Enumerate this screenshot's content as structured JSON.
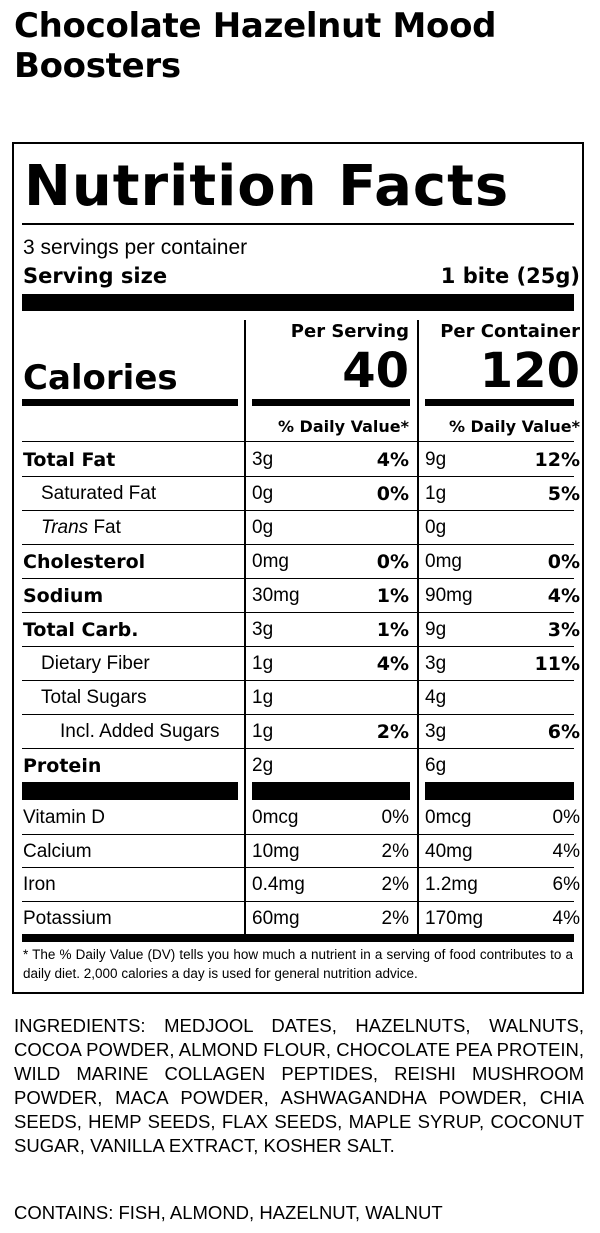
{
  "product": {
    "title": "Chocolate Hazelnut Mood Boosters"
  },
  "label": {
    "heading": "Nutrition Facts",
    "servings_per_container": "3 servings per container",
    "serving_size_label": "Serving size",
    "serving_size_value": "1 bite (25g)",
    "per_serving_header": "Per Serving",
    "per_container_header": "Per Container",
    "calories_label": "Calories",
    "calories_per_serving": "40",
    "calories_per_container": "120",
    "dv_header": "% Daily Value*",
    "nutrients": [
      {
        "name": "Total Fat",
        "bold": true,
        "indent": 0,
        "serving_amount": "3g",
        "serving_dv": "4%",
        "container_amount": "9g",
        "container_dv": "12%"
      },
      {
        "name": "Saturated Fat",
        "bold": false,
        "indent": 1,
        "serving_amount": "0g",
        "serving_dv": "0%",
        "container_amount": "1g",
        "container_dv": "5%"
      },
      {
        "name_italic": "Trans",
        "name": "Fat",
        "bold": false,
        "indent": 1,
        "serving_amount": "0g",
        "serving_dv": "",
        "container_amount": "0g",
        "container_dv": ""
      },
      {
        "name": "Cholesterol",
        "bold": true,
        "indent": 0,
        "serving_amount": "0mg",
        "serving_dv": "0%",
        "container_amount": "0mg",
        "container_dv": "0%"
      },
      {
        "name": "Sodium",
        "bold": true,
        "indent": 0,
        "serving_amount": "30mg",
        "serving_dv": "1%",
        "container_amount": "90mg",
        "container_dv": "4%"
      },
      {
        "name": "Total Carb.",
        "bold": true,
        "indent": 0,
        "serving_amount": "3g",
        "serving_dv": "1%",
        "container_amount": "9g",
        "container_dv": "3%"
      },
      {
        "name": "Dietary Fiber",
        "bold": false,
        "indent": 1,
        "serving_amount": "1g",
        "serving_dv": "4%",
        "container_amount": "3g",
        "container_dv": "11%"
      },
      {
        "name": "Total Sugars",
        "bold": false,
        "indent": 1,
        "serving_amount": "1g",
        "serving_dv": "",
        "container_amount": "4g",
        "container_dv": ""
      },
      {
        "name": "Incl. Added Sugars",
        "bold": false,
        "indent": 2,
        "serving_amount": "1g",
        "serving_dv": "2%",
        "container_amount": "3g",
        "container_dv": "6%"
      },
      {
        "name": "Protein",
        "bold": true,
        "indent": 0,
        "serving_amount": "2g",
        "serving_dv": "",
        "container_amount": "6g",
        "container_dv": ""
      }
    ],
    "vitamins": [
      {
        "name": "Vitamin D",
        "serving_amount": "0mcg",
        "serving_dv": "0%",
        "container_amount": "0mcg",
        "container_dv": "0%"
      },
      {
        "name": "Calcium",
        "serving_amount": "10mg",
        "serving_dv": "2%",
        "container_amount": "40mg",
        "container_dv": "4%"
      },
      {
        "name": "Iron",
        "serving_amount": "0.4mg",
        "serving_dv": "2%",
        "container_amount": "1.2mg",
        "container_dv": "6%"
      },
      {
        "name": "Potassium",
        "serving_amount": "60mg",
        "serving_dv": "2%",
        "container_amount": "170mg",
        "container_dv": "4%"
      }
    ],
    "footnote": "* The % Daily Value (DV) tells you how much a nutrient in a serving of food contributes to a daily diet. 2,000 calories a day is used for general nutrition advice."
  },
  "ingredients": "INGREDIENTS: MEDJOOL DATES, HAZELNUTS, WALNUTS, COCOA POWDER, ALMOND FLOUR, CHOCOLATE PEA PROTEIN, WILD MARINE COLLAGEN PEPTIDES, REISHI MUSHROOM POWDER, MACA POWDER, ASHWAGANDHA POWDER, CHIA SEEDS, HEMP SEEDS, FLAX SEEDS, MAPLE SYRUP, COCONUT SUGAR, VANILLA EXTRACT, KOSHER SALT.",
  "contains": "CONTAINS: FISH, ALMOND, HAZELNUT, WALNUT"
}
